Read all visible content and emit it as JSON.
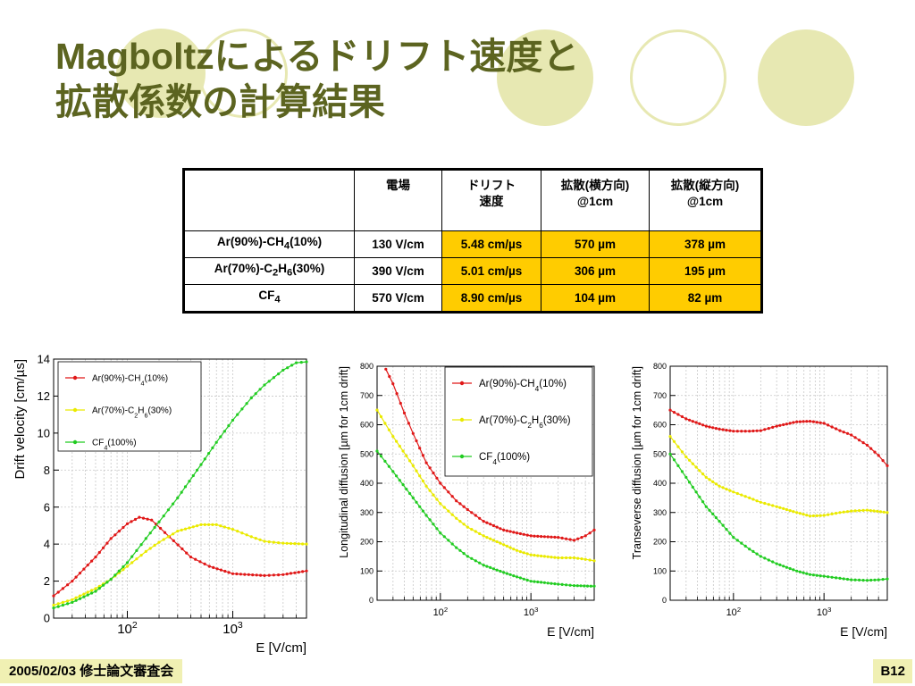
{
  "title": {
    "line1": "Magboltzによるドリフト速度と",
    "line2": "拡散係数の計算結果"
  },
  "table": {
    "headers": [
      {
        "l1": "",
        "l2": ""
      },
      {
        "l1": "電場",
        "l2": ""
      },
      {
        "l1": "ドリフト",
        "l2": "速度"
      },
      {
        "l1": "拡散(横方向)",
        "l2": "@1cm"
      },
      {
        "l1": "拡散(縦方向)",
        "l2": "@1cm"
      }
    ],
    "rows": [
      {
        "gas": {
          "a": "Ar(90%)-CH",
          "s1": "4",
          "b": "(10%)",
          "s2": "",
          "c": ""
        },
        "field": "130 V/cm",
        "velocity": "5.48 cm/µs",
        "trans": "570 µm",
        "long": "378 µm"
      },
      {
        "gas": {
          "a": "Ar(70%)-C",
          "s1": "2",
          "b": "H",
          "s2": "6",
          "c": "(30%)"
        },
        "field": "390 V/cm",
        "velocity": "5.01 cm/µs",
        "trans": "306 µm",
        "long": "195 µm"
      },
      {
        "gas": {
          "a": "CF",
          "s1": "4",
          "b": "",
          "s2": "",
          "c": ""
        },
        "field": "570 V/cm",
        "velocity": "8.90 cm/µs",
        "trans": "104 µm",
        "long": "82 µm"
      }
    ]
  },
  "colors": {
    "title": "#5c6420",
    "highlight": "#ffcc00",
    "deco": "#e7e8b2",
    "footer": "#f0f0b3",
    "series": [
      "#e01818",
      "#eaea00",
      "#22cc22"
    ]
  },
  "footer": {
    "left": "2005/02/03 修士論文審査会",
    "right": "B12"
  },
  "chart_data": [
    {
      "type": "line",
      "x_scale": "log",
      "xlabel": "E [V/cm]",
      "ylabel": "Drift velocity [cm/µs]",
      "xlim": [
        20,
        5000
      ],
      "ylim": [
        0,
        14
      ],
      "yticks": [
        0,
        2,
        4,
        6,
        8,
        10,
        12,
        14
      ],
      "xtick_labels": [
        {
          "x": 100,
          "base": "10",
          "exp": "2"
        },
        {
          "x": 1000,
          "base": "10",
          "exp": "3"
        }
      ],
      "grid": true,
      "legend_position": "top-left",
      "legend": [
        {
          "a": "Ar(90%)-CH",
          "s1": "4",
          "b": "(10%)",
          "s2": "",
          "c": ""
        },
        {
          "a": "Ar(70%)-C",
          "s1": "2",
          "b": "H",
          "s2": "6",
          "c": "(30%)"
        },
        {
          "a": "CF",
          "s1": "4",
          "b": "(100%)",
          "s2": "",
          "c": ""
        }
      ],
      "series": [
        {
          "points": [
            [
              20,
              1.2
            ],
            [
              30,
              2.0
            ],
            [
              50,
              3.3
            ],
            [
              70,
              4.3
            ],
            [
              100,
              5.1
            ],
            [
              130,
              5.45
            ],
            [
              170,
              5.3
            ],
            [
              250,
              4.4
            ],
            [
              400,
              3.3
            ],
            [
              600,
              2.8
            ],
            [
              1000,
              2.4
            ],
            [
              2000,
              2.3
            ],
            [
              3000,
              2.35
            ],
            [
              5000,
              2.55
            ]
          ]
        },
        {
          "points": [
            [
              20,
              0.7
            ],
            [
              30,
              1.0
            ],
            [
              50,
              1.6
            ],
            [
              70,
              2.1
            ],
            [
              100,
              2.8
            ],
            [
              150,
              3.6
            ],
            [
              200,
              4.1
            ],
            [
              300,
              4.7
            ],
            [
              500,
              5.05
            ],
            [
              700,
              5.05
            ],
            [
              1000,
              4.8
            ],
            [
              1500,
              4.4
            ],
            [
              2000,
              4.15
            ],
            [
              3000,
              4.05
            ],
            [
              5000,
              4.0
            ]
          ]
        },
        {
          "points": [
            [
              20,
              0.55
            ],
            [
              30,
              0.85
            ],
            [
              50,
              1.45
            ],
            [
              70,
              2.1
            ],
            [
              100,
              3.0
            ],
            [
              150,
              4.3
            ],
            [
              200,
              5.2
            ],
            [
              300,
              6.5
            ],
            [
              500,
              8.3
            ],
            [
              700,
              9.5
            ],
            [
              1000,
              10.7
            ],
            [
              1500,
              11.9
            ],
            [
              2000,
              12.6
            ],
            [
              3000,
              13.4
            ],
            [
              4000,
              13.8
            ],
            [
              5000,
              13.85
            ]
          ]
        }
      ]
    },
    {
      "type": "line",
      "x_scale": "log",
      "xlabel": "E [V/cm]",
      "ylabel": "Longitudinal diffusion [µm for 1cm drift]",
      "xlim": [
        20,
        5000
      ],
      "ylim": [
        0,
        800
      ],
      "yticks": [
        0,
        100,
        200,
        300,
        400,
        500,
        600,
        700,
        800
      ],
      "xtick_labels": [
        {
          "x": 100,
          "base": "10",
          "exp": "2"
        },
        {
          "x": 1000,
          "base": "10",
          "exp": "3"
        }
      ],
      "grid": true,
      "legend_position": "top-right",
      "legend": [
        {
          "a": "Ar(90%)-CH",
          "s1": "4",
          "b": "(10%)",
          "s2": "",
          "c": ""
        },
        {
          "a": "Ar(70%)-C",
          "s1": "2",
          "b": "H",
          "s2": "6",
          "c": "(30%)"
        },
        {
          "a": "CF",
          "s1": "4",
          "b": "(100%)",
          "s2": "",
          "c": ""
        }
      ],
      "series": [
        {
          "points": [
            [
              25,
              790
            ],
            [
              30,
              740
            ],
            [
              40,
              640
            ],
            [
              50,
              570
            ],
            [
              70,
              470
            ],
            [
              100,
              400
            ],
            [
              150,
              340
            ],
            [
              200,
              310
            ],
            [
              300,
              270
            ],
            [
              500,
              240
            ],
            [
              700,
              230
            ],
            [
              1000,
              220
            ],
            [
              2000,
              215
            ],
            [
              3000,
              205
            ],
            [
              4000,
              220
            ],
            [
              5000,
              240
            ]
          ]
        },
        {
          "points": [
            [
              20,
              650
            ],
            [
              30,
              560
            ],
            [
              50,
              460
            ],
            [
              70,
              390
            ],
            [
              100,
              330
            ],
            [
              150,
              280
            ],
            [
              200,
              250
            ],
            [
              300,
              220
            ],
            [
              500,
              190
            ],
            [
              700,
              170
            ],
            [
              1000,
              155
            ],
            [
              2000,
              145
            ],
            [
              3000,
              145
            ],
            [
              4000,
              140
            ],
            [
              5000,
              135
            ]
          ]
        },
        {
          "points": [
            [
              20,
              510
            ],
            [
              30,
              440
            ],
            [
              50,
              350
            ],
            [
              70,
              290
            ],
            [
              100,
              230
            ],
            [
              150,
              180
            ],
            [
              200,
              150
            ],
            [
              300,
              120
            ],
            [
              500,
              95
            ],
            [
              700,
              80
            ],
            [
              1000,
              65
            ],
            [
              2000,
              55
            ],
            [
              3000,
              50
            ],
            [
              5000,
              48
            ]
          ]
        }
      ]
    },
    {
      "type": "line",
      "x_scale": "log",
      "xlabel": "E [V/cm]",
      "ylabel": "Transeverse diffusion [µm for 1cm drift]",
      "xlim": [
        20,
        5000
      ],
      "ylim": [
        0,
        800
      ],
      "yticks": [
        0,
        100,
        200,
        300,
        400,
        500,
        600,
        700,
        800
      ],
      "xtick_labels": [
        {
          "x": 100,
          "base": "10",
          "exp": "2"
        },
        {
          "x": 1000,
          "base": "10",
          "exp": "3"
        }
      ],
      "grid": true,
      "legend_position": "none",
      "legend": [],
      "series": [
        {
          "points": [
            [
              20,
              650
            ],
            [
              30,
              620
            ],
            [
              50,
              595
            ],
            [
              70,
              585
            ],
            [
              100,
              578
            ],
            [
              150,
              578
            ],
            [
              200,
              580
            ],
            [
              300,
              595
            ],
            [
              500,
              610
            ],
            [
              700,
              612
            ],
            [
              1000,
              605
            ],
            [
              1500,
              580
            ],
            [
              2000,
              565
            ],
            [
              3000,
              530
            ],
            [
              4000,
              495
            ],
            [
              5000,
              460
            ]
          ]
        },
        {
          "points": [
            [
              20,
              560
            ],
            [
              30,
              490
            ],
            [
              50,
              420
            ],
            [
              70,
              390
            ],
            [
              100,
              370
            ],
            [
              150,
              350
            ],
            [
              200,
              335
            ],
            [
              300,
              320
            ],
            [
              500,
              300
            ],
            [
              700,
              288
            ],
            [
              1000,
              290
            ],
            [
              1500,
              300
            ],
            [
              2000,
              305
            ],
            [
              3000,
              308
            ],
            [
              5000,
              300
            ]
          ]
        },
        {
          "points": [
            [
              20,
              500
            ],
            [
              30,
              420
            ],
            [
              50,
              320
            ],
            [
              70,
              270
            ],
            [
              100,
              215
            ],
            [
              150,
              175
            ],
            [
              200,
              150
            ],
            [
              300,
              125
            ],
            [
              500,
              100
            ],
            [
              700,
              88
            ],
            [
              1000,
              82
            ],
            [
              1500,
              75
            ],
            [
              2000,
              70
            ],
            [
              3000,
              68
            ],
            [
              4000,
              70
            ],
            [
              5000,
              73
            ]
          ]
        }
      ]
    }
  ]
}
